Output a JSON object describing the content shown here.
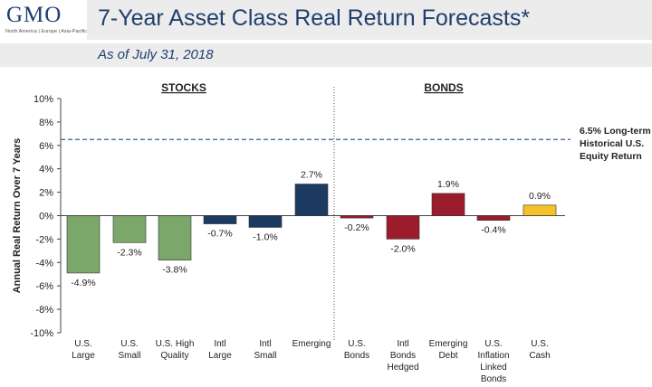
{
  "header": {
    "logo": "GMO",
    "logo_sub": "North America | Europe | Asia-Pacific",
    "title": "7-Year Asset Class Real Return Forecasts*",
    "subtitle": "As of July 31, 2018"
  },
  "colors": {
    "header_bg": "#ececec",
    "title": "#1f3f6e",
    "stocks_us": "#7ba76a",
    "stocks_intl": "#1d3a63",
    "bonds": "#9b1c2c",
    "cash": "#f3c12a",
    "reference_line": "#4a6fa3"
  },
  "chart_data": {
    "type": "bar",
    "ylabel": "Annual Real Return Over 7 Years",
    "ylim": [
      -10,
      10
    ],
    "yticks": [
      "10%",
      "8%",
      "6%",
      "4%",
      "2%",
      "0%",
      "-2%",
      "-4%",
      "-6%",
      "-8%",
      "-10%"
    ],
    "groups": [
      {
        "label": "STOCKS",
        "count": 6
      },
      {
        "label": "BONDS",
        "count": 5
      }
    ],
    "categories": [
      [
        "U.S.",
        "Large"
      ],
      [
        "U.S.",
        "Small"
      ],
      [
        "U.S. High",
        "Quality"
      ],
      [
        "Intl",
        "Large"
      ],
      [
        "Intl",
        "Small"
      ],
      [
        "Emerging"
      ],
      [
        "U.S.",
        "Bonds"
      ],
      [
        "Intl",
        "Bonds",
        "Hedged"
      ],
      [
        "Emerging",
        "Debt"
      ],
      [
        "U.S.",
        "Inflation",
        "Linked",
        "Bonds"
      ],
      [
        "U.S.",
        "Cash"
      ]
    ],
    "values": [
      -4.9,
      -2.3,
      -3.8,
      -0.7,
      -1.0,
      2.7,
      -0.2,
      -2.0,
      1.9,
      -0.4,
      0.9
    ],
    "value_labels": [
      "-4.9%",
      "-2.3%",
      "-3.8%",
      "-0.7%",
      "-1.0%",
      "2.7%",
      "-0.2%",
      "-2.0%",
      "1.9%",
      "-0.4%",
      "0.9%"
    ],
    "bar_colors": [
      "#7ba76a",
      "#7ba76a",
      "#7ba76a",
      "#1d3a63",
      "#1d3a63",
      "#1d3a63",
      "#9b1c2c",
      "#9b1c2c",
      "#9b1c2c",
      "#9b1c2c",
      "#f3c12a"
    ],
    "reference_line": {
      "value": 6.5,
      "label": [
        "6.5% Long-term",
        "Historical U.S.",
        "Equity Return"
      ]
    },
    "grid": false
  }
}
